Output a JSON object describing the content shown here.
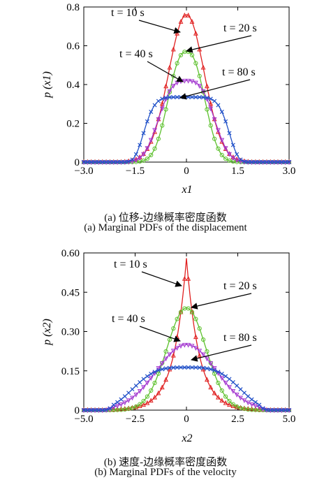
{
  "captions": [
    {
      "cn": "(a) 位移-边缘概率密度函数",
      "en": "(a) Marginal PDFs of the displacement"
    },
    {
      "cn": "(b) 速度-边缘概率密度函数",
      "en": "(b) Marginal PDFs of the velocity"
    }
  ],
  "chart_data": [
    {
      "type": "line",
      "xlabel": "x1",
      "ylabel": "p (x1)",
      "xlim": [
        -3.0,
        3.0
      ],
      "ylim": [
        0,
        0.8
      ],
      "xticks": [
        -3.0,
        -1.5,
        0,
        1.5,
        3.0
      ],
      "xtick_labels": [
        "−3.0",
        "−1.5",
        "0",
        "1.5",
        "3.0"
      ],
      "yticks": [
        0,
        0.2,
        0.4,
        0.6,
        0.8
      ],
      "ytick_labels": [
        "0",
        "0.2",
        "0.4",
        "0.6",
        "0.8"
      ],
      "grid": false,
      "series": [
        {
          "name": "t = 10 s",
          "color": "#e02020",
          "marker": "triangle-up",
          "shape": "gauss",
          "peak": 0.76,
          "sigma": 0.52,
          "support": 2.0
        },
        {
          "name": "t = 20 s",
          "color": "#5cc02c",
          "marker": "circle",
          "shape": "flat",
          "peak": 0.57,
          "sigma": 0.68,
          "p": 2.4,
          "support": 2.0
        },
        {
          "name": "t = 40 s",
          "color": "#a43ad0",
          "marker": "triangle-down",
          "shape": "flat",
          "peak": 0.42,
          "sigma": 0.95,
          "p": 3.0,
          "support": 2.0
        },
        {
          "name": "t = 80 s",
          "color": "#2050c8",
          "marker": "x",
          "shape": "flat",
          "peak": 0.335,
          "sigma": 1.3,
          "p": 6.0,
          "support": 2.0
        }
      ],
      "annotations": [
        {
          "text": "t = 10 s",
          "series": "t = 10 s"
        },
        {
          "text": "t = 20 s",
          "series": "t = 20 s"
        },
        {
          "text": "t = 40 s",
          "series": "t = 40 s"
        },
        {
          "text": "t = 80 s",
          "series": "t = 80 s"
        }
      ]
    },
    {
      "type": "line",
      "xlabel": "x2",
      "ylabel": "p (x2)",
      "xlim": [
        -5.0,
        5.0
      ],
      "ylim": [
        0,
        0.6
      ],
      "xticks": [
        -5.0,
        -2.5,
        0,
        2.5,
        5.0
      ],
      "xtick_labels": [
        "−5.0",
        "−2.5",
        "0",
        "2.5",
        "5.0"
      ],
      "yticks": [
        0,
        0.15,
        0.3,
        0.45,
        0.6
      ],
      "ytick_labels": [
        "0",
        "0.15",
        "0.30",
        "0.45",
        "0.60"
      ],
      "grid": false,
      "series": [
        {
          "name": "t = 10 s",
          "color": "#e02020",
          "marker": "triangle-up",
          "shape": "laplace",
          "peak": 0.58,
          "b": 0.62,
          "support": 4.0
        },
        {
          "name": "t = 20 s",
          "color": "#5cc02c",
          "marker": "circle",
          "shape": "gauss",
          "peak": 0.39,
          "sigma": 0.95,
          "support": 4.0
        },
        {
          "name": "t = 40 s",
          "color": "#a43ad0",
          "marker": "triangle-down",
          "shape": "gauss",
          "peak": 0.25,
          "sigma": 1.45,
          "support": 4.0
        },
        {
          "name": "t = 80 s",
          "color": "#2050c8",
          "marker": "x",
          "shape": "flat",
          "peak": 0.163,
          "sigma": 2.9,
          "p": 3.5,
          "support": 4.0
        }
      ],
      "annotations": [
        {
          "text": "t = 10 s",
          "series": "t = 10 s"
        },
        {
          "text": "t = 20 s",
          "series": "t = 20 s"
        },
        {
          "text": "t = 40 s",
          "series": "t = 40 s"
        },
        {
          "text": "t = 80 s",
          "series": "t = 80 s"
        }
      ]
    }
  ]
}
